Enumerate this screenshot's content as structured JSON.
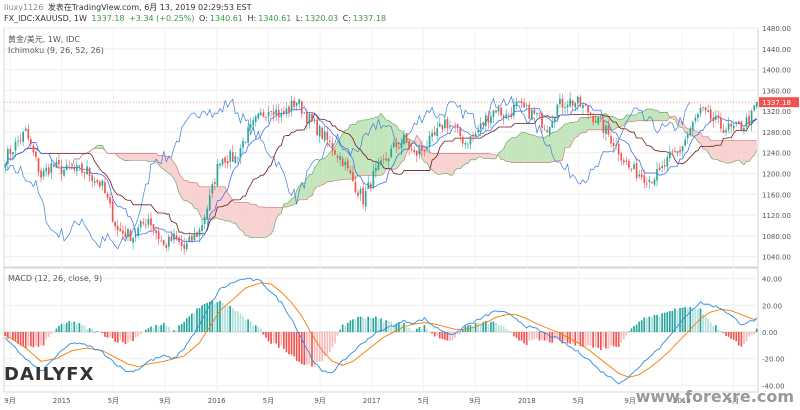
{
  "header": {
    "user": "liuxy1126",
    "published": "发表在TradingView.com, 6月 13, 2019 02:29:53 EST",
    "symbol": "FX_IDC:XAUUSD, 1W",
    "last": "1337.18",
    "change": "+3.34 (+0.25%)",
    "o_label": "O:",
    "o": "1340.61",
    "h_label": "H:",
    "h": "1340.61",
    "l_label": "L:",
    "l": "1320.03",
    "c_label": "C:",
    "c": "1337.18"
  },
  "legend": {
    "line1": "黄金/美元, 1W, IDC",
    "line2": "Ichimoku (9, 26, 52, 26)",
    "macd": "MACD (12, 26, close, 9)"
  },
  "price_label": "1337.18",
  "logo": "DAILYFX",
  "watermark": "www.forexre.com",
  "colors": {
    "up": "#26a69a",
    "down": "#ef5350",
    "tenkan": "#2962ff",
    "kijun": "#6d1a1a",
    "chikou": "#3f7fd6",
    "cloud_bull": "#b9e0b0",
    "cloud_bear": "#f7c9c9",
    "macd_line": "#2d8ce0",
    "signal_line": "#f57c00"
  },
  "chart_data": [
    {
      "type": "candlestick",
      "title": "黄金/美元, 1W, IDC",
      "ylim": [
        1020,
        1480
      ],
      "y_ticks": [
        1040,
        1080,
        1120,
        1160,
        1200,
        1240,
        1280,
        1320,
        1360,
        1400,
        1440,
        1480
      ],
      "y_tick_labels": [
        "1040.00",
        "1080.00",
        "1120.00",
        "1160.00",
        "1200.00",
        "1240.00",
        "1280.00",
        "1320.00",
        "1360.00",
        "1400.00",
        "1440.00",
        "1480.00"
      ],
      "x_tick_labels": [
        "9月",
        "2015",
        "5月",
        "9月",
        "2016",
        "5月",
        "9月",
        "2017",
        "5月",
        "9月",
        "2018",
        "5月",
        "9月",
        "2019",
        "5月"
      ],
      "anchors": [
        [
          0,
          1230
        ],
        [
          8,
          1280
        ],
        [
          14,
          1195
        ],
        [
          18,
          1215
        ],
        [
          24,
          1205
        ],
        [
          32,
          1205
        ],
        [
          38,
          1175
        ],
        [
          44,
          1090
        ],
        [
          50,
          1080
        ],
        [
          56,
          1115
        ],
        [
          62,
          1060
        ],
        [
          66,
          1075
        ],
        [
          70,
          1055
        ],
        [
          76,
          1090
        ],
        [
          80,
          1150
        ],
        [
          84,
          1230
        ],
        [
          90,
          1230
        ],
        [
          94,
          1270
        ],
        [
          98,
          1300
        ],
        [
          104,
          1330
        ],
        [
          108,
          1310
        ],
        [
          114,
          1340
        ],
        [
          118,
          1310
        ],
        [
          124,
          1275
        ],
        [
          128,
          1250
        ],
        [
          132,
          1225
        ],
        [
          136,
          1185
        ],
        [
          140,
          1150
        ],
        [
          144,
          1195
        ],
        [
          148,
          1220
        ],
        [
          152,
          1250
        ],
        [
          156,
          1265
        ],
        [
          160,
          1235
        ],
        [
          164,
          1250
        ],
        [
          168,
          1270
        ],
        [
          172,
          1300
        ],
        [
          176,
          1285
        ],
        [
          180,
          1260
        ],
        [
          184,
          1275
        ],
        [
          188,
          1305
        ],
        [
          192,
          1325
        ],
        [
          196,
          1310
        ],
        [
          200,
          1330
        ],
        [
          204,
          1320
        ],
        [
          208,
          1310
        ],
        [
          212,
          1290
        ],
        [
          216,
          1330
        ],
        [
          220,
          1340
        ],
        [
          224,
          1335
        ],
        [
          228,
          1320
        ],
        [
          232,
          1300
        ],
        [
          236,
          1275
        ],
        [
          240,
          1245
        ],
        [
          244,
          1210
        ],
        [
          248,
          1200
        ],
        [
          252,
          1190
        ],
        [
          256,
          1200
        ],
        [
          260,
          1230
        ],
        [
          264,
          1245
        ],
        [
          268,
          1285
        ],
        [
          272,
          1320
        ],
        [
          276,
          1305
        ],
        [
          280,
          1290
        ],
        [
          284,
          1285
        ],
        [
          288,
          1290
        ],
        [
          292,
          1310
        ],
        [
          294,
          1337
        ]
      ],
      "last": 1337.18
    },
    {
      "type": "macd",
      "title": "MACD (12, 26, close, 9)",
      "ylim": [
        -45,
        48
      ],
      "y_ticks": [
        -40,
        -20,
        0,
        20,
        40
      ],
      "y_tick_labels": [
        "-40.00",
        "-20.00",
        "0.00",
        "20.00",
        "40.00"
      ],
      "macd_anchors": [
        [
          0,
          -5
        ],
        [
          8,
          -20
        ],
        [
          14,
          -30
        ],
        [
          20,
          -18
        ],
        [
          26,
          -8
        ],
        [
          32,
          -10
        ],
        [
          38,
          -15
        ],
        [
          44,
          -25
        ],
        [
          48,
          -30
        ],
        [
          52,
          -28
        ],
        [
          56,
          -22
        ],
        [
          62,
          -18
        ],
        [
          66,
          -20
        ],
        [
          70,
          -12
        ],
        [
          76,
          5
        ],
        [
          80,
          20
        ],
        [
          84,
          32
        ],
        [
          90,
          38
        ],
        [
          94,
          40
        ],
        [
          100,
          38
        ],
        [
          104,
          30
        ],
        [
          108,
          22
        ],
        [
          112,
          10
        ],
        [
          116,
          -5
        ],
        [
          120,
          -20
        ],
        [
          124,
          -30
        ],
        [
          128,
          -30
        ],
        [
          132,
          -22
        ],
        [
          136,
          -15
        ],
        [
          140,
          -8
        ],
        [
          144,
          -2
        ],
        [
          148,
          2
        ],
        [
          152,
          5
        ],
        [
          156,
          8
        ],
        [
          160,
          7
        ],
        [
          164,
          10
        ],
        [
          168,
          4
        ],
        [
          172,
          0
        ],
        [
          176,
          -2
        ],
        [
          180,
          5
        ],
        [
          184,
          8
        ],
        [
          188,
          12
        ],
        [
          192,
          16
        ],
        [
          196,
          14
        ],
        [
          200,
          10
        ],
        [
          204,
          4
        ],
        [
          208,
          2
        ],
        [
          212,
          -2
        ],
        [
          216,
          -5
        ],
        [
          220,
          -10
        ],
        [
          224,
          -15
        ],
        [
          228,
          -20
        ],
        [
          232,
          -28
        ],
        [
          236,
          -33
        ],
        [
          240,
          -38
        ],
        [
          244,
          -34
        ],
        [
          248,
          -26
        ],
        [
          252,
          -18
        ],
        [
          256,
          -12
        ],
        [
          260,
          -2
        ],
        [
          264,
          6
        ],
        [
          268,
          16
        ],
        [
          272,
          22
        ],
        [
          276,
          20
        ],
        [
          280,
          18
        ],
        [
          284,
          12
        ],
        [
          288,
          6
        ],
        [
          292,
          8
        ],
        [
          294,
          10
        ]
      ],
      "signal_anchors": [
        [
          0,
          -2
        ],
        [
          8,
          -12
        ],
        [
          14,
          -22
        ],
        [
          20,
          -20
        ],
        [
          26,
          -14
        ],
        [
          32,
          -12
        ],
        [
          38,
          -14
        ],
        [
          44,
          -20
        ],
        [
          48,
          -24
        ],
        [
          52,
          -26
        ],
        [
          56,
          -24
        ],
        [
          62,
          -22
        ],
        [
          66,
          -20
        ],
        [
          70,
          -18
        ],
        [
          76,
          -8
        ],
        [
          80,
          4
        ],
        [
          84,
          16
        ],
        [
          90,
          26
        ],
        [
          94,
          33
        ],
        [
          100,
          37
        ],
        [
          104,
          36
        ],
        [
          108,
          30
        ],
        [
          112,
          22
        ],
        [
          116,
          12
        ],
        [
          120,
          -2
        ],
        [
          124,
          -14
        ],
        [
          128,
          -22
        ],
        [
          132,
          -25
        ],
        [
          136,
          -22
        ],
        [
          140,
          -16
        ],
        [
          144,
          -10
        ],
        [
          148,
          -4
        ],
        [
          152,
          0
        ],
        [
          156,
          4
        ],
        [
          160,
          6
        ],
        [
          164,
          7
        ],
        [
          168,
          6
        ],
        [
          172,
          4
        ],
        [
          176,
          2
        ],
        [
          180,
          2
        ],
        [
          184,
          4
        ],
        [
          188,
          7
        ],
        [
          192,
          11
        ],
        [
          196,
          13
        ],
        [
          200,
          13
        ],
        [
          204,
          10
        ],
        [
          208,
          6
        ],
        [
          212,
          3
        ],
        [
          216,
          0
        ],
        [
          220,
          -4
        ],
        [
          224,
          -8
        ],
        [
          228,
          -13
        ],
        [
          232,
          -19
        ],
        [
          236,
          -25
        ],
        [
          240,
          -31
        ],
        [
          244,
          -34
        ],
        [
          248,
          -32
        ],
        [
          252,
          -27
        ],
        [
          256,
          -21
        ],
        [
          260,
          -14
        ],
        [
          264,
          -6
        ],
        [
          268,
          2
        ],
        [
          272,
          10
        ],
        [
          276,
          15
        ],
        [
          280,
          17
        ],
        [
          284,
          16
        ],
        [
          288,
          13
        ],
        [
          292,
          10
        ],
        [
          294,
          9
        ]
      ]
    }
  ]
}
